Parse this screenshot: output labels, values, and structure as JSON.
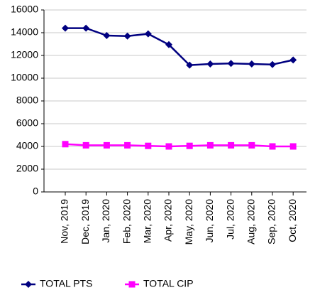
{
  "chart_data": {
    "type": "line",
    "categories": [
      "Nov, 2019",
      "Dec, 2019",
      "Jan, 2020",
      "Feb, 2020",
      "Mar, 2020",
      "Apr, 2020",
      "May, 2020",
      "Jun, 2020",
      "Jul, 2020",
      "Aug, 2020",
      "Sep, 2020",
      "Oct, 2020"
    ],
    "series": [
      {
        "name": "TOTAL PTS",
        "color": "#000080",
        "marker": "diamond",
        "values": [
          14400,
          14400,
          13750,
          13700,
          13900,
          12950,
          11150,
          11250,
          11300,
          11250,
          11200,
          11600
        ]
      },
      {
        "name": "TOTAL CIP",
        "color": "#ff00ff",
        "marker": "square",
        "values": [
          4200,
          4100,
          4100,
          4100,
          4050,
          4000,
          4050,
          4100,
          4100,
          4100,
          4000,
          4000
        ]
      }
    ],
    "ylim": [
      0,
      16000
    ],
    "yticks": [
      0,
      2000,
      4000,
      6000,
      8000,
      10000,
      12000,
      14000,
      16000
    ],
    "grid": true,
    "legend": "bottom"
  }
}
